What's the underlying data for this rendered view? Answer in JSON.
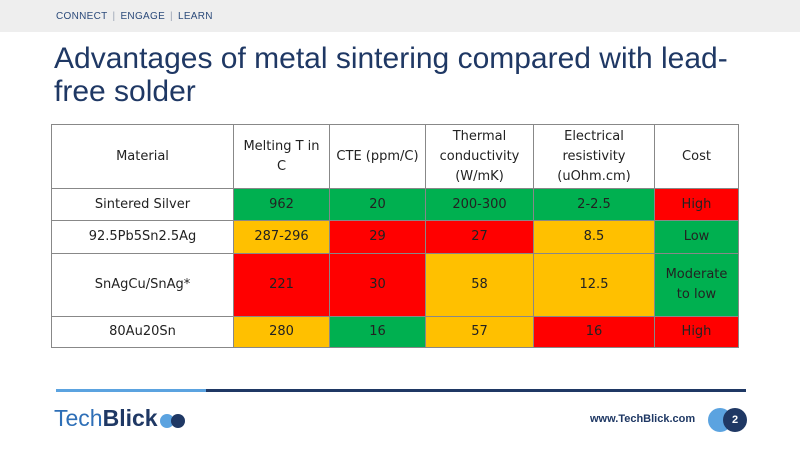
{
  "topnav": {
    "items": [
      "CONNECT",
      "ENGAGE",
      "LEARN"
    ],
    "separator": "|"
  },
  "title": "Advantages of metal sintering compared with lead-free solder",
  "table": {
    "headers": {
      "material": "Material",
      "melting": "Melting T in C",
      "cte": "CTE (ppm/C)",
      "thermal": [
        "Thermal",
        "conductivity",
        "(W/mK)"
      ],
      "electrical": [
        "Electrical",
        "resistivity",
        "(uOhm.cm)"
      ],
      "cost": "Cost"
    },
    "rows": [
      {
        "material": "Sintered Silver",
        "melting": "962",
        "cte": "20",
        "thermal": "200-300",
        "electrical": "2-2.5",
        "cost": "High"
      },
      {
        "material": "92.5Pb5Sn2.5Ag",
        "melting": "287-296",
        "cte": "29",
        "thermal": "27",
        "electrical": "8.5",
        "cost": "Low"
      },
      {
        "material": "SnAgCu/SnAg*",
        "melting": "221",
        "cte": "30",
        "thermal": "58",
        "electrical": "12.5",
        "cost": [
          "Moderate",
          "to low"
        ]
      },
      {
        "material": "80Au20Sn",
        "melting": "280",
        "cte": "16",
        "thermal": "57",
        "electrical": "16",
        "cost": "High"
      }
    ],
    "colors": {
      "green": "#00b050",
      "red": "#ff0000",
      "amber": "#ffc000"
    }
  },
  "footer": {
    "logo_part1": "Tech",
    "logo_part2": "Blick",
    "url": "www.TechBlick.com",
    "page_number": "2"
  }
}
